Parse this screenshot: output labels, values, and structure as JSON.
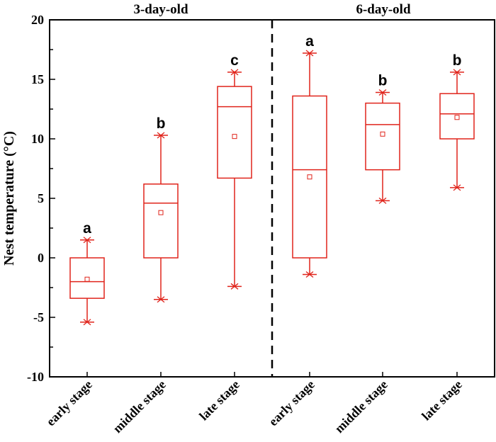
{
  "chart_data": {
    "type": "box",
    "title": "",
    "xlabel": "",
    "ylabel": "Nest temperature (°C)",
    "ylim": [
      -10,
      20
    ],
    "yticks": [
      "-10",
      "-5",
      "0",
      "5",
      "10",
      "15",
      "20"
    ],
    "grid": false,
    "box_color": "#e0241b",
    "panels": [
      {
        "title": "3-day-old",
        "categories": [
          "early stage",
          "middle stage",
          "late stage"
        ],
        "boxes": [
          {
            "whisker_low": -5.4,
            "q1": -3.4,
            "median": -2.0,
            "q3": 0.0,
            "whisker_high": 1.5,
            "mean": -1.8,
            "min": -5.4,
            "max": 1.5,
            "letter": "a"
          },
          {
            "whisker_low": -3.5,
            "q1": 0.0,
            "median": 4.6,
            "q3": 6.2,
            "whisker_high": 10.3,
            "mean": 3.8,
            "min": -3.5,
            "max": 10.3,
            "letter": "b"
          },
          {
            "whisker_low": -2.4,
            "q1": 6.7,
            "median": 12.7,
            "q3": 14.4,
            "whisker_high": 15.6,
            "mean": 10.2,
            "min": -2.4,
            "max": 15.6,
            "letter": "c"
          }
        ]
      },
      {
        "title": "6-day-old",
        "categories": [
          "early stage",
          "middle stage",
          "late stage"
        ],
        "boxes": [
          {
            "whisker_low": -1.4,
            "q1": 0.0,
            "median": 7.4,
            "q3": 13.6,
            "whisker_high": 17.2,
            "mean": 6.8,
            "min": -1.4,
            "max": 17.2,
            "letter": "a"
          },
          {
            "whisker_low": 4.8,
            "q1": 7.4,
            "median": 11.2,
            "q3": 13.0,
            "whisker_high": 13.9,
            "mean": 10.4,
            "min": 4.8,
            "max": 13.9,
            "letter": "b"
          },
          {
            "whisker_low": 5.9,
            "q1": 10.0,
            "median": 12.1,
            "q3": 13.8,
            "whisker_high": 15.6,
            "mean": 11.8,
            "min": 5.9,
            "max": 15.6,
            "letter": "b"
          }
        ]
      }
    ]
  }
}
